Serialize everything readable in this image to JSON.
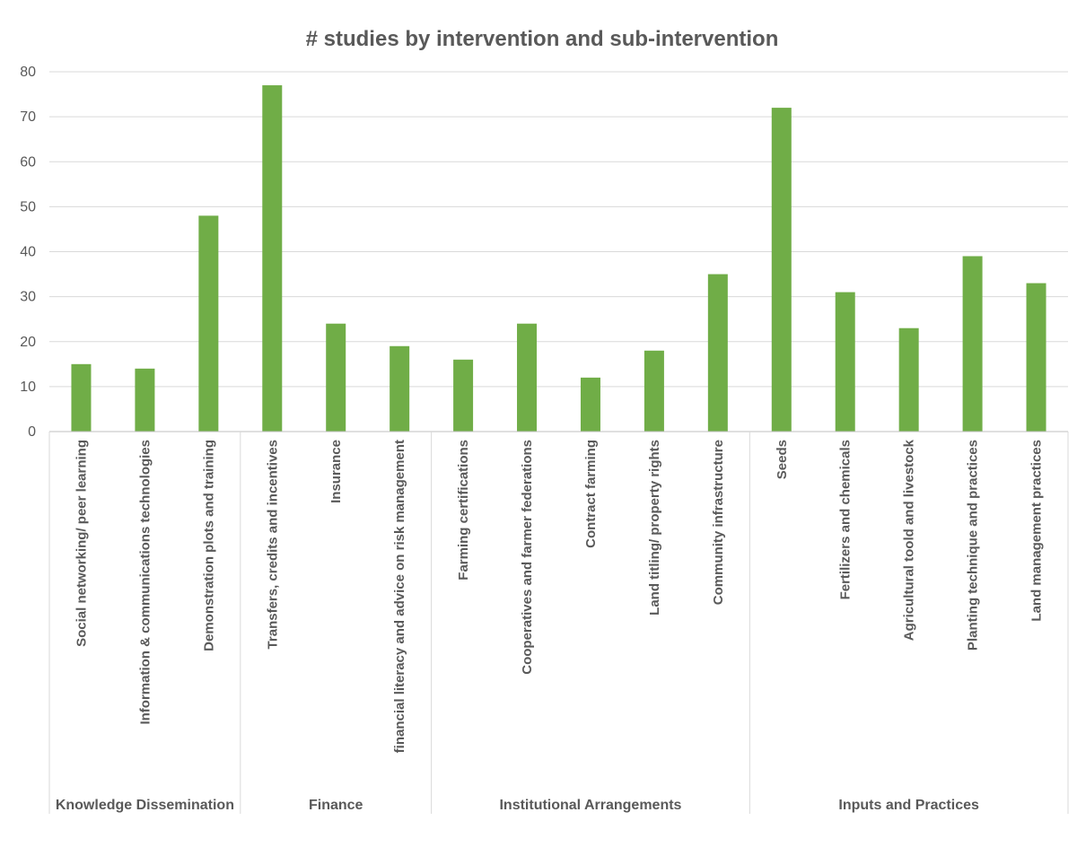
{
  "chart_data": {
    "type": "bar",
    "title": "# studies by intervention and sub-intervention",
    "xlabel": "",
    "ylabel": "",
    "ylim": [
      0,
      80
    ],
    "yticks": [
      0,
      10,
      20,
      30,
      40,
      50,
      60,
      70,
      80
    ],
    "grid": true,
    "legend": "none",
    "bar_color": "#70ad47",
    "categories": [
      "Social networking/ peer learning",
      "Information & communications technologies",
      "Demonstration plots and training",
      "Transfers, credits and incentives",
      "Insurance",
      "financial literacy and advice on risk management",
      "Farming certifications",
      "Cooperatives and farmer federations",
      "Contract farming",
      "Land titling/ property rights",
      "Community infrastructure",
      "Seeds",
      "Fertilizers and chemicals",
      "Agricultural toold and livestock",
      "Planting technique and practices",
      "Land management practices"
    ],
    "values": [
      15,
      14,
      48,
      77,
      24,
      19,
      16,
      24,
      12,
      18,
      35,
      72,
      31,
      23,
      39,
      33
    ],
    "groups": [
      {
        "name": "Knowledge Dissemination",
        "count": 3
      },
      {
        "name": "Finance",
        "count": 3
      },
      {
        "name": "Institutional Arrangements",
        "count": 5
      },
      {
        "name": "Inputs and Practices",
        "count": 5
      }
    ]
  }
}
